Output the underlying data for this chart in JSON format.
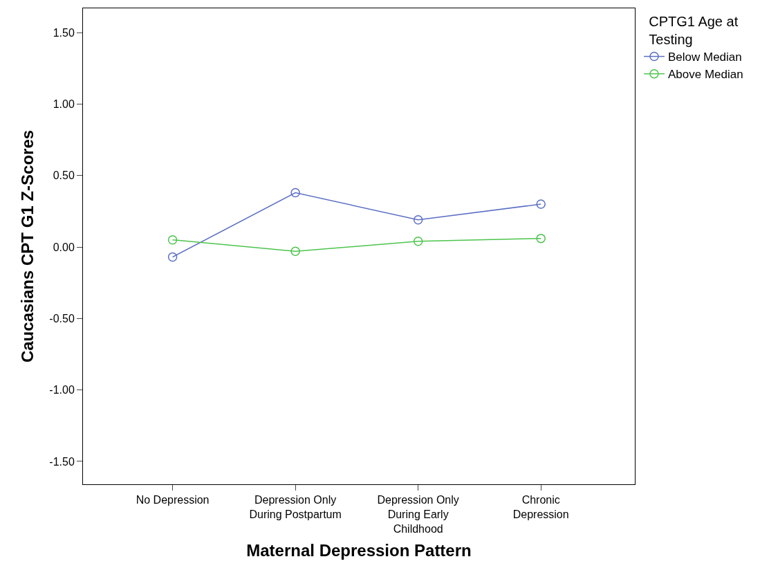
{
  "chart_data": {
    "type": "line",
    "xlabel": "Maternal Depression Pattern",
    "ylabel": "Caucasians CPT G1 Z-Scores",
    "legend_title": "CPTG1 Age at\nTesting",
    "categories": [
      "No Depression",
      "Depression Only\nDuring Postpartum",
      "Depression Only\nDuring Early\nChildhood",
      "Chronic\nDepression"
    ],
    "series": [
      {
        "name": "Below Median",
        "color": "#5b6fc4",
        "values": [
          -0.07,
          0.38,
          0.19,
          0.3
        ]
      },
      {
        "name": "Above Median",
        "color": "#4cc44c",
        "values": [
          0.05,
          -0.03,
          0.04,
          0.06
        ]
      }
    ],
    "ylim": [
      -1.66,
      1.67
    ],
    "yticks": [
      {
        "value": -1.5,
        "label": "-1.50"
      },
      {
        "value": -1.0,
        "label": "-1.00"
      },
      {
        "value": -0.5,
        "label": "-0.50"
      },
      {
        "value": 0,
        "label": "0.00"
      },
      {
        "value": 0.5,
        "label": "0.50"
      },
      {
        "value": 1.0,
        "label": "1.00"
      },
      {
        "value": 1.5,
        "label": "1.50"
      }
    ],
    "legend": "top right",
    "marker": "circle",
    "line_style": "solid"
  }
}
